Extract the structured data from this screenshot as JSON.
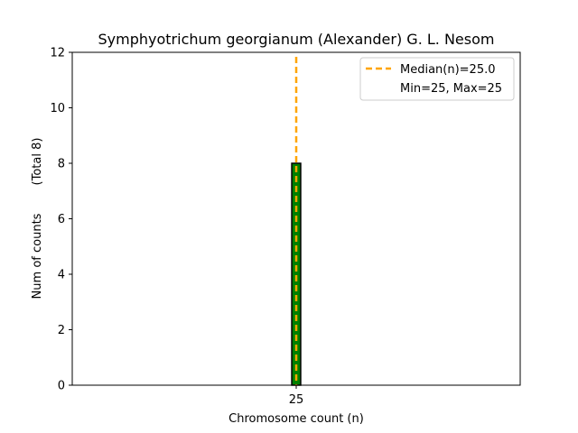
{
  "chart_data": {
    "type": "bar",
    "title": "Symphyotrichum georgianum (Alexander) G. L. Nesom",
    "xlabel": "Chromosome count (n)",
    "ylabel": "Num of counts",
    "ylabel_total": "(Total 8)",
    "categories": [
      "25"
    ],
    "x": [
      25
    ],
    "values": [
      8
    ],
    "xlim": [
      24.0,
      26.0
    ],
    "ylim": [
      0,
      12
    ],
    "yticks": [
      0,
      2,
      4,
      6,
      8,
      10,
      12
    ],
    "xticks": [
      25
    ],
    "median_line": {
      "x": 25.0,
      "label": "Median(n)=25.0",
      "color": "#ffa500"
    },
    "minmax_label": "Min=25, Max=25",
    "bar_color": "#008000",
    "bar_edge_color": "#000000",
    "grid": false,
    "legend_position": "top-right"
  }
}
